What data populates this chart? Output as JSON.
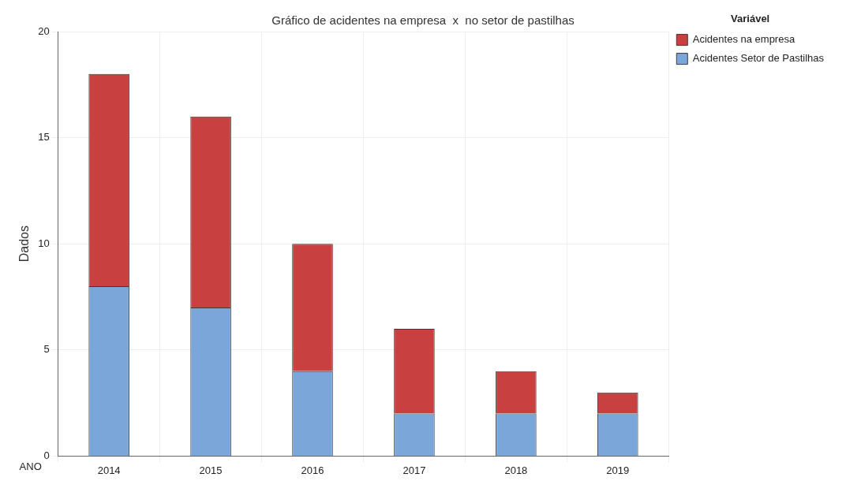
{
  "chart_data": {
    "type": "bar",
    "title": "Gráfico de acidentes na empresa  x  no setor de pastilhas",
    "xlabel": "ANO",
    "ylabel": "Dados",
    "legend_title": "Variável",
    "categories": [
      "2014",
      "2015",
      "2016",
      "2017",
      "2018",
      "2019"
    ],
    "stacked": true,
    "series": [
      {
        "name": "Acidentes Setor de Pastilhas",
        "color": "#7aa6da",
        "values": [
          8,
          7,
          4,
          2,
          2,
          2
        ]
      },
      {
        "name": "Acidentes na empresa",
        "color": "#c94040",
        "values": [
          10,
          9,
          6,
          4,
          2,
          1
        ]
      }
    ],
    "ylim": [
      0,
      20
    ],
    "yticks": [
      0,
      5,
      10,
      15,
      20
    ],
    "grid": true,
    "legend": "right"
  }
}
